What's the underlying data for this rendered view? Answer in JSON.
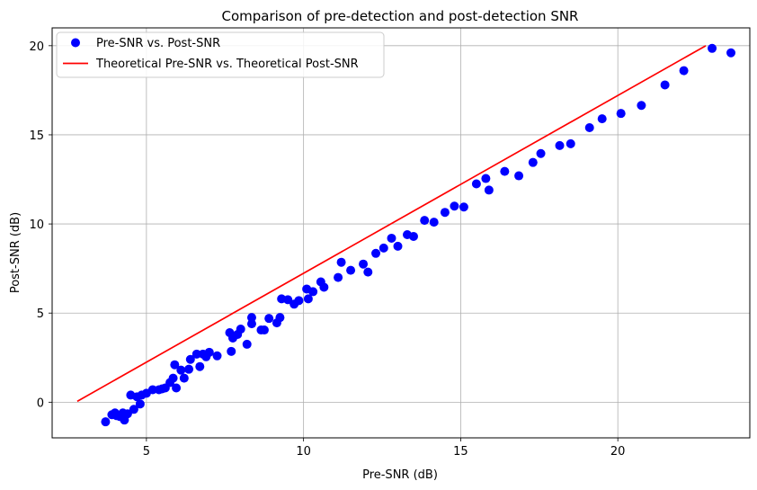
{
  "chart_data": {
    "type": "scatter",
    "title": "Comparison of pre-detection and post-detection SNR",
    "xlabel": "Pre-SNR (dB)",
    "ylabel": "Post-SNR (dB)",
    "xlim": [
      2.0,
      24.2
    ],
    "ylim": [
      -2.0,
      21.0
    ],
    "xticks": [
      5,
      10,
      15,
      20
    ],
    "yticks": [
      0,
      5,
      10,
      15,
      20
    ],
    "grid": true,
    "legend_position": "top-left",
    "series": [
      {
        "name": "Pre-SNR vs. Post-SNR",
        "kind": "scatter",
        "color": "#0000ff",
        "points": [
          [
            3.7,
            -1.1
          ],
          [
            3.9,
            -0.7
          ],
          [
            4.0,
            -0.6
          ],
          [
            4.05,
            -0.75
          ],
          [
            4.15,
            -0.8
          ],
          [
            4.25,
            -0.6
          ],
          [
            4.3,
            -1.0
          ],
          [
            4.4,
            -0.65
          ],
          [
            4.5,
            0.4
          ],
          [
            4.6,
            -0.4
          ],
          [
            4.7,
            0.3
          ],
          [
            4.8,
            -0.1
          ],
          [
            4.85,
            0.4
          ],
          [
            5.0,
            0.5
          ],
          [
            5.2,
            0.7
          ],
          [
            5.4,
            0.7
          ],
          [
            5.5,
            0.75
          ],
          [
            5.6,
            0.8
          ],
          [
            5.75,
            1.1
          ],
          [
            5.85,
            1.35
          ],
          [
            5.9,
            2.1
          ],
          [
            5.95,
            0.8
          ],
          [
            6.1,
            1.8
          ],
          [
            6.2,
            1.35
          ],
          [
            6.35,
            1.85
          ],
          [
            6.4,
            2.4
          ],
          [
            6.6,
            2.7
          ],
          [
            6.7,
            2.0
          ],
          [
            6.8,
            2.7
          ],
          [
            6.9,
            2.55
          ],
          [
            7.0,
            2.8
          ],
          [
            7.25,
            2.6
          ],
          [
            7.65,
            3.9
          ],
          [
            7.7,
            2.85
          ],
          [
            7.75,
            3.6
          ],
          [
            7.9,
            3.8
          ],
          [
            8.0,
            4.1
          ],
          [
            8.2,
            3.25
          ],
          [
            8.35,
            4.75
          ],
          [
            8.35,
            4.4
          ],
          [
            8.65,
            4.05
          ],
          [
            8.75,
            4.05
          ],
          [
            8.9,
            4.7
          ],
          [
            9.15,
            4.45
          ],
          [
            9.25,
            4.75
          ],
          [
            9.3,
            5.8
          ],
          [
            9.5,
            5.75
          ],
          [
            9.7,
            5.5
          ],
          [
            9.85,
            5.7
          ],
          [
            10.1,
            6.35
          ],
          [
            10.15,
            5.8
          ],
          [
            10.3,
            6.2
          ],
          [
            10.55,
            6.75
          ],
          [
            10.65,
            6.45
          ],
          [
            11.1,
            7.0
          ],
          [
            11.2,
            7.85
          ],
          [
            11.5,
            7.4
          ],
          [
            11.9,
            7.75
          ],
          [
            12.05,
            7.3
          ],
          [
            12.3,
            8.35
          ],
          [
            12.55,
            8.65
          ],
          [
            12.8,
            9.2
          ],
          [
            13.0,
            8.75
          ],
          [
            13.3,
            9.4
          ],
          [
            13.5,
            9.3
          ],
          [
            13.85,
            10.2
          ],
          [
            14.15,
            10.1
          ],
          [
            14.5,
            10.65
          ],
          [
            14.8,
            11.0
          ],
          [
            15.1,
            10.95
          ],
          [
            15.5,
            12.25
          ],
          [
            15.8,
            12.55
          ],
          [
            15.9,
            11.9
          ],
          [
            16.4,
            12.95
          ],
          [
            16.85,
            12.7
          ],
          [
            17.3,
            13.45
          ],
          [
            17.55,
            13.95
          ],
          [
            18.15,
            14.4
          ],
          [
            18.5,
            14.5
          ],
          [
            19.1,
            15.4
          ],
          [
            19.5,
            15.9
          ],
          [
            20.1,
            16.2
          ],
          [
            20.75,
            16.65
          ],
          [
            21.5,
            17.8
          ],
          [
            22.1,
            18.6
          ],
          [
            23.0,
            19.85
          ],
          [
            23.6,
            19.6
          ]
        ]
      },
      {
        "name": "Theoretical Pre-SNR vs. Theoretical Post-SNR",
        "kind": "line",
        "color": "#ff0000",
        "points": [
          [
            2.8,
            0.05
          ],
          [
            22.8,
            20.0
          ]
        ]
      }
    ]
  }
}
